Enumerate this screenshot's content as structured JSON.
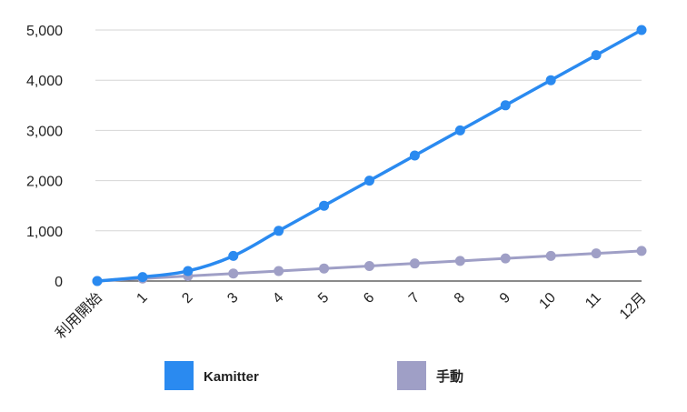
{
  "chart_data": {
    "type": "line",
    "title": "",
    "xlabel": "",
    "ylabel": "",
    "categories": [
      "利用開始",
      "1",
      "2",
      "3",
      "4",
      "5",
      "6",
      "7",
      "8",
      "9",
      "10",
      "11",
      "12月"
    ],
    "ylim": [
      0,
      5000
    ],
    "yticks": [
      0,
      1000,
      2000,
      3000,
      4000,
      5000
    ],
    "ytick_labels": [
      "0",
      "1,000",
      "2,000",
      "3,000",
      "4,000",
      "5,000"
    ],
    "grid": true,
    "legend_position": "bottom",
    "series": [
      {
        "name": "Kamitter",
        "color": "#2a8af0",
        "values": [
          0,
          80,
          200,
          500,
          1000,
          1500,
          2000,
          2500,
          3000,
          3500,
          4000,
          4500,
          5000
        ]
      },
      {
        "name": "手動",
        "color": "#9f9fc6",
        "values": [
          0,
          50,
          100,
          150,
          200,
          250,
          300,
          350,
          400,
          450,
          500,
          550,
          600
        ]
      }
    ]
  }
}
